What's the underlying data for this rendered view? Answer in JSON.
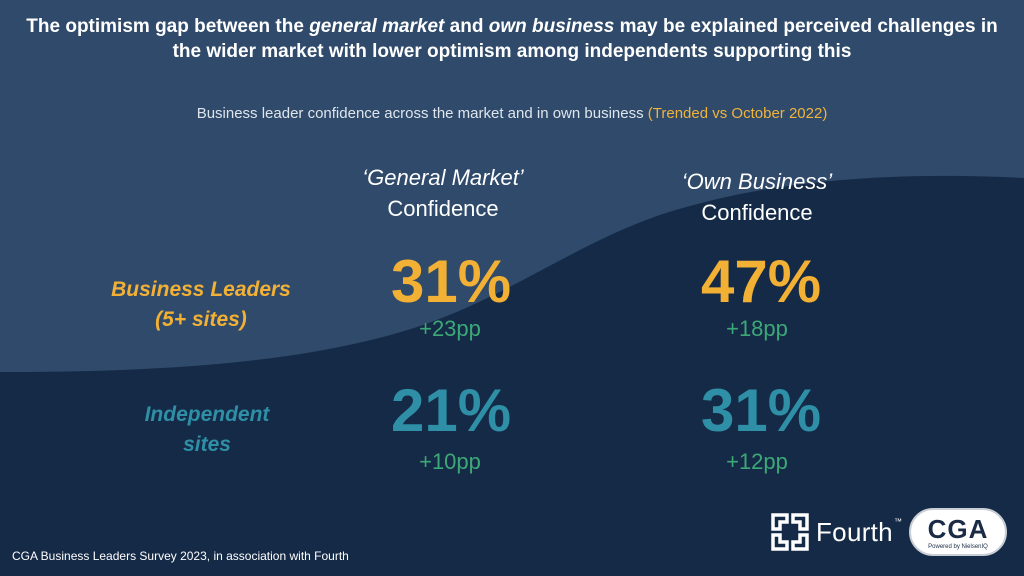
{
  "title": {
    "part1": "The optimism gap between the ",
    "em1": "general market",
    "part2": " and ",
    "em2": "own business",
    "part3": " may be explained perceived challenges in the wider market with lower optimism among independents supporting this"
  },
  "subtitle": {
    "main": "Business leader confidence across the market and in own business",
    "trend": "(Trended vs October 2022)"
  },
  "columns": [
    {
      "quote": "‘General Market’",
      "label": "Confidence"
    },
    {
      "quote": "‘Own Business’",
      "label": "Confidence"
    }
  ],
  "rows": [
    {
      "label_line1": "Business Leaders",
      "label_line2": "(5+ sites)",
      "color": "#f2b034",
      "values": [
        {
          "value": "31%",
          "change": "+23pp"
        },
        {
          "value": "47%",
          "change": "+18pp"
        }
      ]
    },
    {
      "label_line1": "Independent",
      "label_line2": "sites",
      "color": "#2e8fa6",
      "values": [
        {
          "value": "21%",
          "change": "+10pp"
        },
        {
          "value": "31%",
          "change": "+12pp"
        }
      ]
    }
  ],
  "colors": {
    "change": "#3da877",
    "accent": "#f0b43c",
    "background_light": "#2f4a6a",
    "background_dark": "#152a46"
  },
  "footer": "CGA Business Leaders Survey 2023, in association with Fourth",
  "logos": {
    "fourth": "Fourth",
    "fourth_tm": "™",
    "cga": "CGA",
    "cga_tagline": "Powered by NielsenIQ"
  }
}
